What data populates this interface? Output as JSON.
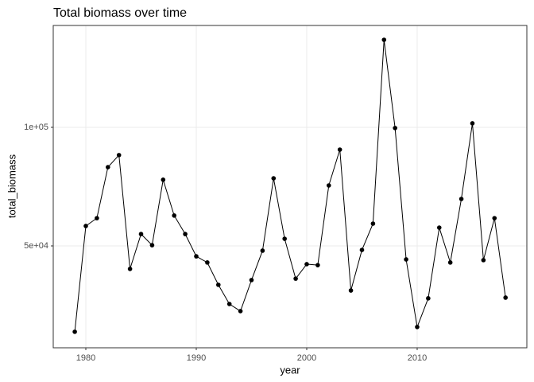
{
  "chart_data": {
    "type": "line",
    "title": "Total biomass over time",
    "x_label": "year",
    "y_label": "total_biomass",
    "x": [
      1979,
      1980,
      1981,
      1982,
      1983,
      1984,
      1985,
      1986,
      1987,
      1988,
      1989,
      1990,
      1991,
      1992,
      1993,
      1994,
      1995,
      1996,
      1997,
      1998,
      1999,
      2000,
      2001,
      2002,
      2003,
      2004,
      2005,
      2006,
      2007,
      2008,
      2009,
      2010,
      2011,
      2012,
      2013,
      2014,
      2015,
      2016,
      2017,
      2018
    ],
    "series": [
      {
        "name": "total_biomass",
        "color": "#000000",
        "values": [
          13800,
          58400,
          61700,
          83200,
          88300,
          40300,
          55000,
          50300,
          77900,
          62800,
          55000,
          45600,
          43000,
          33600,
          25500,
          22500,
          35600,
          48000,
          78500,
          53000,
          36200,
          42300,
          41900,
          75500,
          90600,
          31200,
          48300,
          59400,
          136900,
          99700,
          44300,
          15800,
          27900,
          57700,
          43000,
          69800,
          101700,
          44000,
          61700,
          28200
        ]
      }
    ],
    "xlim": [
      1977.05,
      2019.93
    ],
    "ylim": [
      7047,
      142953
    ],
    "xticks": [
      1980,
      1990,
      2000,
      2010
    ],
    "yticks": [
      {
        "value": 50000,
        "label": "5e+04"
      },
      {
        "value": 100000,
        "label": "1e+05"
      }
    ],
    "grid": true
  }
}
